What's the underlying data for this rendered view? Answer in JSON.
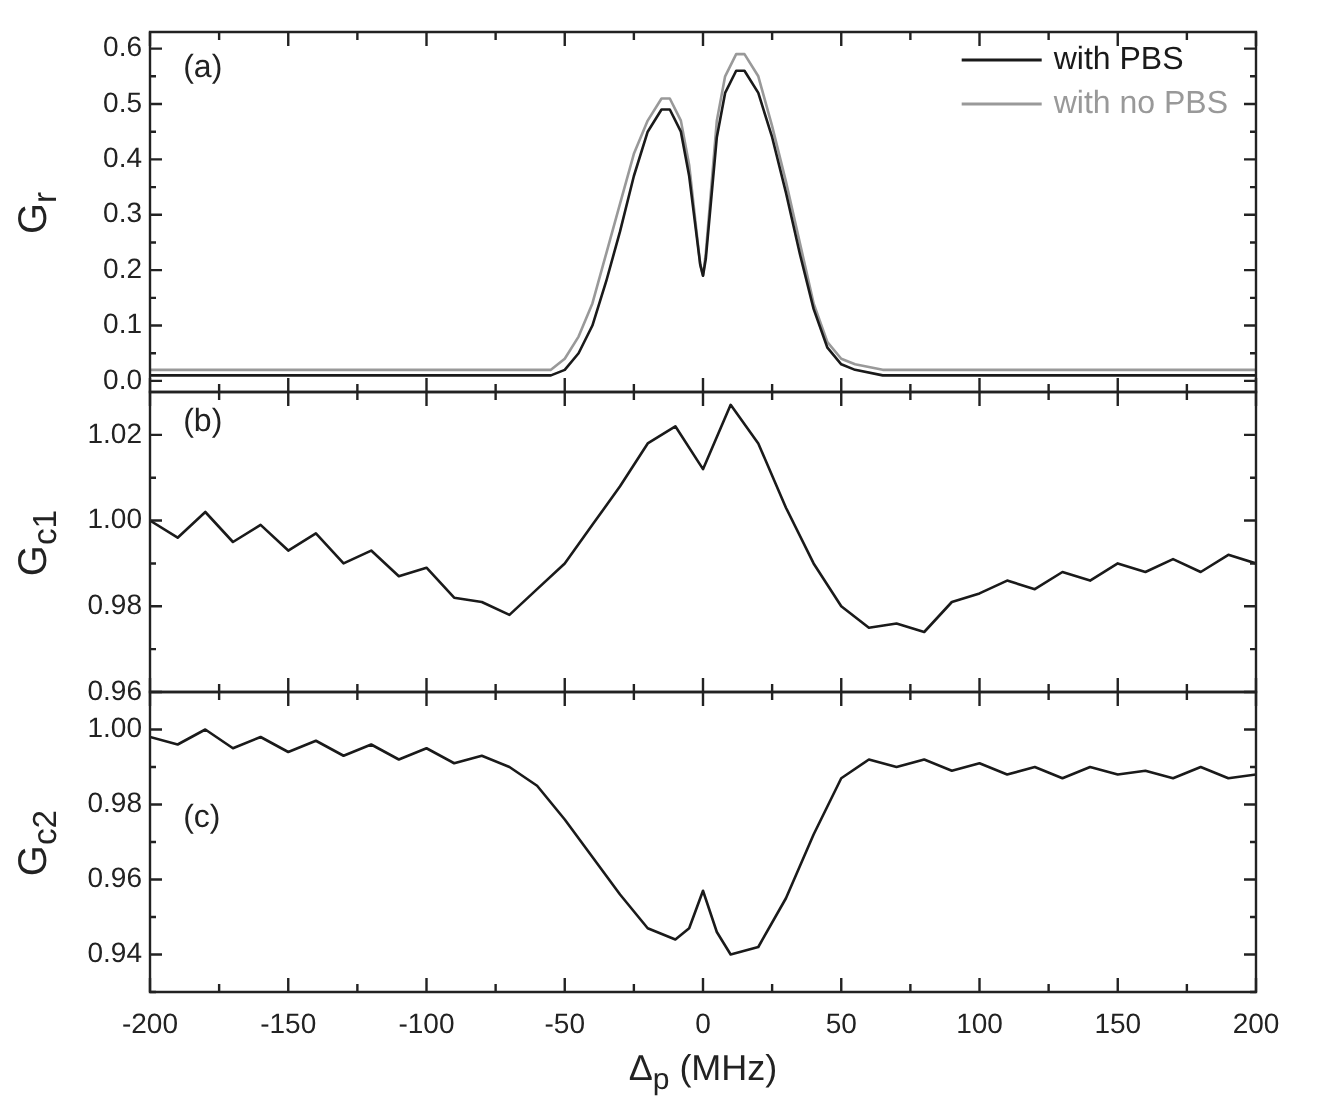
{
  "chart_data": [
    {
      "type": "line",
      "ylabel": "G$_{r}$",
      "annotations": [
        "(a)"
      ],
      "legend": "top right",
      "marker": "none",
      "line_style": "solid",
      "tick_labels": "y",
      "x": [
        -200,
        -180,
        -160,
        -140,
        -120,
        -100,
        -80,
        -65,
        -55,
        -50,
        -45,
        -40,
        -35,
        -30,
        -25,
        -20,
        -15,
        -12,
        -8,
        -5,
        -3,
        -1,
        0,
        1,
        3,
        5,
        8,
        12,
        15,
        20,
        25,
        30,
        35,
        40,
        45,
        50,
        55,
        65,
        80,
        100,
        120,
        140,
        160,
        180,
        200
      ],
      "xticks": [
        -200,
        {
          "value": -175,
          "label": null
        },
        -150,
        {
          "value": -125,
          "label": null
        },
        -100,
        {
          "value": -75,
          "label": null
        },
        -50,
        {
          "value": -25,
          "label": null
        },
        0,
        {
          "value": 25,
          "label": null
        },
        50,
        {
          "value": 75,
          "label": null
        },
        100,
        {
          "value": 125,
          "label": null
        },
        150,
        {
          "value": 175,
          "label": null
        },
        200
      ],
      "series": [
        {
          "name": "with PBS",
          "color": "#1a1a1a",
          "values": [
            0.01,
            0.01,
            0.01,
            0.01,
            0.01,
            0.01,
            0.01,
            0.01,
            0.01,
            0.02,
            0.05,
            0.1,
            0.18,
            0.27,
            0.37,
            0.45,
            0.49,
            0.49,
            0.45,
            0.37,
            0.29,
            0.21,
            0.19,
            0.22,
            0.33,
            0.44,
            0.52,
            0.56,
            0.56,
            0.52,
            0.44,
            0.34,
            0.23,
            0.13,
            0.06,
            0.03,
            0.02,
            0.01,
            0.01,
            0.01,
            0.01,
            0.01,
            0.01,
            0.01,
            0.01
          ]
        },
        {
          "name": "with no PBS",
          "color": "#999999",
          "values": [
            0.02,
            0.02,
            0.02,
            0.02,
            0.02,
            0.02,
            0.02,
            0.02,
            0.02,
            0.04,
            0.08,
            0.14,
            0.23,
            0.32,
            0.41,
            0.47,
            0.51,
            0.51,
            0.47,
            0.39,
            0.3,
            0.21,
            0.19,
            0.23,
            0.35,
            0.47,
            0.55,
            0.59,
            0.59,
            0.55,
            0.46,
            0.36,
            0.25,
            0.14,
            0.07,
            0.04,
            0.03,
            0.02,
            0.02,
            0.02,
            0.02,
            0.02,
            0.02,
            0.02,
            0.02
          ]
        }
      ],
      "xlim": [
        -200,
        200
      ],
      "ylim": [
        -0.02,
        0.63
      ],
      "yticks": [
        {
          "value": 0,
          "label": "0.0"
        },
        {
          "value": 0.05,
          "label": null
        },
        {
          "value": 0.1,
          "label": "0.1"
        },
        {
          "value": 0.15,
          "label": null
        },
        {
          "value": 0.2,
          "label": "0.2"
        },
        {
          "value": 0.25,
          "label": null
        },
        {
          "value": 0.3,
          "label": "0.3"
        },
        {
          "value": 0.35,
          "label": null
        },
        {
          "value": 0.4,
          "label": "0.4"
        },
        {
          "value": 0.45,
          "label": null
        },
        {
          "value": 0.5,
          "label": "0.5"
        },
        {
          "value": 0.55,
          "label": null
        },
        {
          "value": 0.6,
          "label": "0.6"
        }
      ]
    },
    {
      "type": "line",
      "ylabel": "G$_{c1}$",
      "annotations": [
        "(b)"
      ],
      "marker": "none",
      "line_style": "solid",
      "tick_labels": "y",
      "x": [
        -200,
        -190,
        -180,
        -170,
        -160,
        -150,
        -140,
        -130,
        -120,
        -110,
        -100,
        -90,
        -80,
        -70,
        -60,
        -50,
        -40,
        -30,
        -20,
        -10,
        0,
        10,
        20,
        30,
        40,
        50,
        60,
        70,
        80,
        90,
        100,
        110,
        120,
        130,
        140,
        150,
        160,
        170,
        180,
        190,
        200
      ],
      "series": [
        {
          "color": "#1a1a1a",
          "values": [
            1.0,
            0.996,
            1.002,
            0.995,
            0.999,
            0.993,
            0.997,
            0.99,
            0.993,
            0.987,
            0.989,
            0.982,
            0.981,
            0.978,
            0.984,
            0.99,
            0.999,
            1.008,
            1.018,
            1.022,
            1.012,
            1.027,
            1.018,
            1.003,
            0.99,
            0.98,
            0.975,
            0.976,
            0.974,
            0.981,
            0.983,
            0.986,
            0.984,
            0.988,
            0.986,
            0.99,
            0.988,
            0.991,
            0.988,
            0.992,
            0.99
          ]
        }
      ],
      "xlim": [
        -200,
        200
      ],
      "xticks": [
        -200,
        {
          "value": -175,
          "label": null
        },
        -150,
        {
          "value": -125,
          "label": null
        },
        -100,
        {
          "value": -75,
          "label": null
        },
        -50,
        {
          "value": -25,
          "label": null
        },
        0,
        {
          "value": 25,
          "label": null
        },
        50,
        {
          "value": 75,
          "label": null
        },
        100,
        {
          "value": 125,
          "label": null
        },
        150,
        {
          "value": 175,
          "label": null
        },
        200
      ],
      "ylim": [
        0.96,
        1.03
      ],
      "yticks": [
        0.96,
        {
          "value": 0.97,
          "label": null
        },
        0.98,
        {
          "value": 0.99,
          "label": null
        },
        {
          "value": 1.0,
          "label": "1.00"
        },
        {
          "value": 1.01,
          "label": null
        },
        1.02
      ]
    },
    {
      "type": "line",
      "xlabel": "Δ$_{p}$ (MHz)",
      "ylabel": "G$_{c2}$",
      "annotations": [
        "(c)"
      ],
      "marker": "none",
      "line_style": "solid",
      "x": [
        -200,
        -190,
        -180,
        -170,
        -160,
        -150,
        -140,
        -130,
        -120,
        -110,
        -100,
        -90,
        -80,
        -70,
        -60,
        -50,
        -40,
        -30,
        -20,
        -10,
        -5,
        0,
        5,
        10,
        20,
        30,
        40,
        50,
        60,
        70,
        80,
        90,
        100,
        110,
        120,
        130,
        140,
        150,
        160,
        170,
        180,
        190,
        200
      ],
      "series": [
        {
          "color": "#1a1a1a",
          "values": [
            0.998,
            0.996,
            1.0,
            0.995,
            0.998,
            0.994,
            0.997,
            0.993,
            0.996,
            0.992,
            0.995,
            0.991,
            0.993,
            0.99,
            0.985,
            0.976,
            0.966,
            0.956,
            0.947,
            0.944,
            0.947,
            0.957,
            0.946,
            0.94,
            0.942,
            0.955,
            0.972,
            0.987,
            0.992,
            0.99,
            0.992,
            0.989,
            0.991,
            0.988,
            0.99,
            0.987,
            0.99,
            0.988,
            0.989,
            0.987,
            0.99,
            0.987,
            0.988
          ]
        }
      ],
      "xlim": [
        -200,
        200
      ],
      "xticks": [
        -200,
        {
          "value": -175,
          "label": null
        },
        -150,
        {
          "value": -125,
          "label": null
        },
        -100,
        {
          "value": -75,
          "label": null
        },
        -50,
        {
          "value": -25,
          "label": null
        },
        0,
        {
          "value": 25,
          "label": null
        },
        50,
        {
          "value": 75,
          "label": null
        },
        100,
        {
          "value": 125,
          "label": null
        },
        150,
        {
          "value": 175,
          "label": null
        },
        200
      ],
      "ylim": [
        0.93,
        1.01
      ],
      "yticks": [
        {
          "value": 0.93,
          "label": null
        },
        0.94,
        {
          "value": 0.95,
          "label": null
        },
        0.96,
        {
          "value": 0.97,
          "label": null
        },
        0.98,
        {
          "value": 0.99,
          "label": null
        },
        {
          "value": 1.0,
          "label": "1.00"
        }
      ]
    }
  ]
}
